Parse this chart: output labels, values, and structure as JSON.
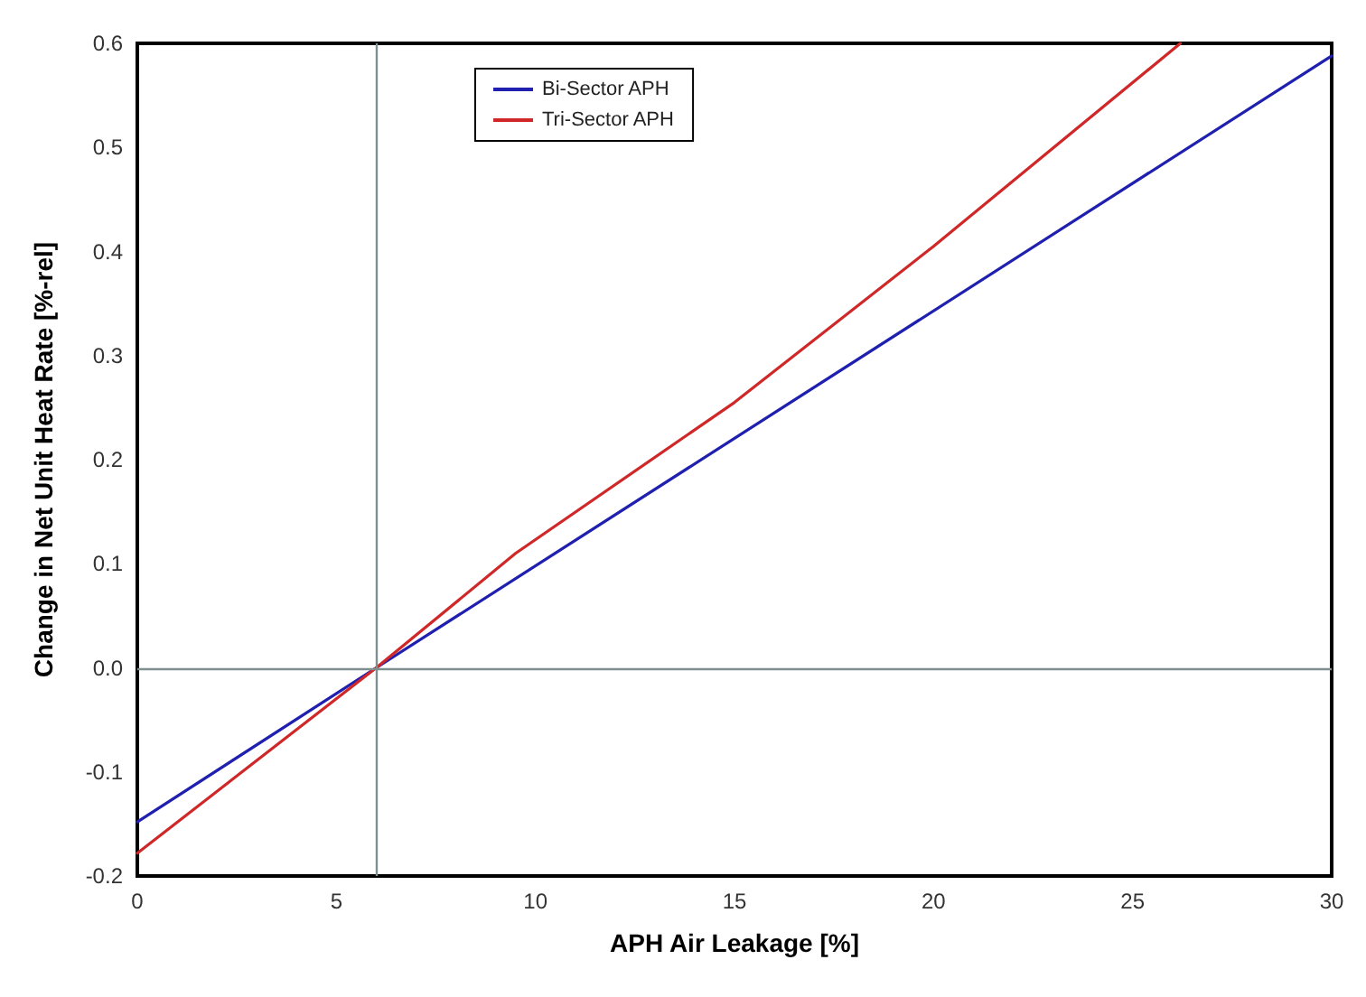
{
  "chart_data": {
    "type": "line",
    "xlabel": "APH Air Leakage [%]",
    "ylabel": "Change in Net Unit Heat Rate [%-rel]",
    "xlim": [
      0,
      30
    ],
    "xticks": [
      0,
      5,
      10,
      15,
      20,
      25,
      30
    ],
    "ylim": [
      -0.2,
      0.6
    ],
    "yticks": [
      {
        "value": -0.2,
        "label": "-0.2"
      },
      {
        "value": -0.1,
        "label": "-0.1"
      },
      {
        "value": 0,
        "label": "0.0"
      },
      0.1,
      0.2,
      0.3,
      0.4,
      0.5,
      0.6
    ],
    "series": [
      {
        "name": "Bi-Sector APH",
        "color": "#2020b0",
        "x": [
          0,
          6,
          30
        ],
        "values": [
          -0.148,
          0,
          0.588
        ]
      },
      {
        "name": "Tri-Sector APH",
        "color": "#d02828",
        "x": [
          0,
          6,
          9.5,
          15,
          20,
          26.2
        ],
        "values": [
          -0.178,
          0,
          0.11,
          0.255,
          0.405,
          0.6
        ]
      }
    ],
    "ref_lines": [
      {
        "axis": "x",
        "value": 6,
        "color": "#7f8f8f"
      },
      {
        "axis": "y",
        "value": 0,
        "color": "#7f8f8f"
      }
    ],
    "grid": false,
    "legend": "top left",
    "marker": "none",
    "line_style": "solid"
  }
}
